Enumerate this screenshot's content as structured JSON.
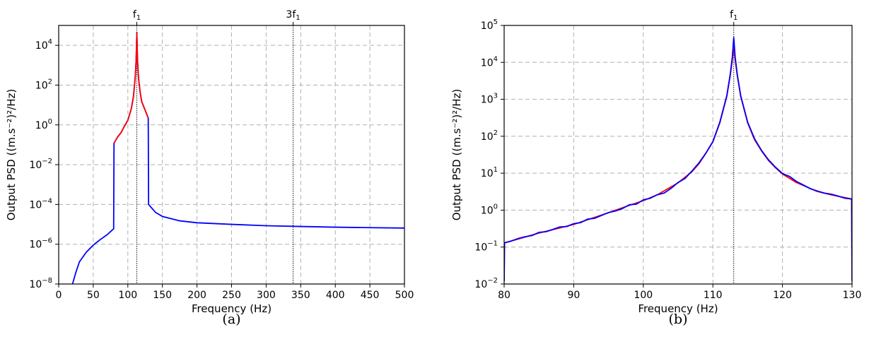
{
  "chart_data": [
    {
      "type": "line",
      "caption": "(a)",
      "xlabel": "Frequency (Hz)",
      "ylabel": "Output PSD ((m.s⁻²)²/Hz)",
      "xlim": [
        0,
        500
      ],
      "ylim": [
        1e-08,
        100000.0
      ],
      "yscale": "log",
      "grid": true,
      "xticks": [
        0,
        50,
        100,
        150,
        200,
        250,
        300,
        350,
        400,
        450,
        500
      ],
      "yticks": [
        {
          "exp": -8,
          "label": "10",
          "sup": "−8"
        },
        {
          "exp": -6,
          "label": "10",
          "sup": "−6"
        },
        {
          "exp": -4,
          "label": "10",
          "sup": "−4"
        },
        {
          "exp": -2,
          "label": "10",
          "sup": "−2"
        },
        {
          "exp": 0,
          "label": "10",
          "sup": "0"
        },
        {
          "exp": 2,
          "label": "10",
          "sup": "2"
        },
        {
          "exp": 4,
          "label": "10",
          "sup": "4"
        }
      ],
      "markers": [
        {
          "x": 113,
          "label": "f",
          "sub": "1"
        },
        {
          "x": 339,
          "label": "3f",
          "sub": "1"
        }
      ],
      "series": [
        {
          "color": "#0000ff",
          "x": [
            20,
            25,
            30,
            40,
            50,
            60,
            70,
            79.5,
            80,
            85,
            90,
            95,
            100,
            105,
            108,
            110,
            111,
            112,
            112.5,
            113,
            113.5,
            114,
            115,
            116,
            118,
            120,
            125,
            129.5,
            130,
            140,
            150,
            175,
            200,
            250,
            300,
            350,
            400,
            450,
            500
          ],
          "y": [
            1e-08,
            4e-08,
            1.3e-07,
            4e-07,
            9e-07,
            1.7e-06,
            3e-06,
            6e-06,
            0.12,
            0.24,
            0.4,
            0.85,
            1.7,
            6.5,
            25,
            130,
            380,
            1800,
            9000,
            45000,
            9000,
            1800,
            400,
            150,
            40,
            15,
            5.5,
            2.2,
            0.0001,
            4e-05,
            2.5e-05,
            1.5e-05,
            1.2e-05,
            1e-05,
            8.5e-06,
            7.8e-06,
            7.2e-06,
            6.8e-06,
            6.5e-06
          ]
        },
        {
          "color": "#ff0000",
          "x": [
            80,
            85,
            90,
            95,
            100,
            105,
            108,
            110,
            111,
            112,
            112.5,
            113,
            113.5,
            114,
            115,
            116,
            118,
            120,
            125,
            129.5
          ],
          "y": [
            0.12,
            0.24,
            0.4,
            0.85,
            1.7,
            6.5,
            25,
            130,
            380,
            1800,
            9000,
            40000,
            9000,
            1800,
            400,
            150,
            40,
            15,
            5.5,
            2.2
          ]
        }
      ]
    },
    {
      "type": "line",
      "caption": "(b)",
      "xlabel": "Frequency (Hz)",
      "ylabel": "Output PSD ((m.s⁻²)²/Hz)",
      "xlim": [
        80,
        130
      ],
      "ylim": [
        0.01,
        100000.0
      ],
      "yscale": "log",
      "grid": true,
      "xticks": [
        80,
        90,
        100,
        110,
        120,
        130
      ],
      "yticks": [
        {
          "exp": -2,
          "label": "10",
          "sup": "−2"
        },
        {
          "exp": -1,
          "label": "10",
          "sup": "−1"
        },
        {
          "exp": 0,
          "label": "10",
          "sup": "0"
        },
        {
          "exp": 1,
          "label": "10",
          "sup": "1"
        },
        {
          "exp": 2,
          "label": "10",
          "sup": "2"
        },
        {
          "exp": 3,
          "label": "10",
          "sup": "3"
        },
        {
          "exp": 4,
          "label": "10",
          "sup": "4"
        },
        {
          "exp": 5,
          "label": "10",
          "sup": "5"
        }
      ],
      "markers": [
        {
          "x": 113,
          "label": "f",
          "sub": "1"
        }
      ],
      "series": [
        {
          "color": "#ff0000",
          "x": [
            80,
            80.05,
            82,
            85,
            88,
            90,
            92,
            95,
            98,
            100,
            102,
            105,
            107,
            108,
            109,
            110,
            111,
            112,
            112.5,
            112.8,
            113,
            113.2,
            113.5,
            114,
            115,
            116,
            117,
            118,
            119,
            120,
            122,
            125,
            127,
            129.95,
            130
          ],
          "y": [
            0.012,
            0.13,
            0.165,
            0.24,
            0.33,
            0.41,
            0.55,
            0.85,
            1.35,
            1.8,
            2.6,
            5.5,
            11,
            18,
            35,
            70,
            230,
            1200,
            4500,
            12000,
            25000,
            12000,
            4500,
            1200,
            230,
            80,
            40,
            22,
            14,
            9.5,
            5.6,
            3.2,
            2.6,
            2.0,
            0.012
          ]
        },
        {
          "color": "#0000ff",
          "x": [
            80,
            80.05,
            81,
            82,
            83,
            84,
            85,
            86,
            87,
            88,
            89,
            90,
            91,
            92,
            93,
            94,
            95,
            96,
            97,
            98,
            99,
            100,
            101,
            102,
            103,
            104,
            105,
            106,
            107,
            108,
            109,
            110,
            111,
            112,
            112.5,
            112.8,
            113,
            113.2,
            113.5,
            114,
            115,
            116,
            117,
            118,
            119,
            120,
            121,
            122,
            123,
            124,
            125,
            126,
            127,
            128,
            129,
            129.95,
            130
          ],
          "y": [
            0.012,
            0.13,
            0.145,
            0.17,
            0.19,
            0.205,
            0.25,
            0.26,
            0.3,
            0.35,
            0.36,
            0.43,
            0.46,
            0.57,
            0.6,
            0.72,
            0.86,
            0.95,
            1.1,
            1.4,
            1.45,
            1.9,
            2.1,
            2.6,
            2.9,
            3.9,
            5.6,
            7.2,
            11.5,
            19,
            35,
            72,
            240,
            1250,
            4800,
            14000,
            47000,
            14000,
            4800,
            1250,
            240,
            85,
            41,
            23,
            14.5,
            9.8,
            8.2,
            6.0,
            4.8,
            3.8,
            3.3,
            2.9,
            2.7,
            2.4,
            2.1,
            2.0,
            0.012
          ]
        }
      ]
    }
  ]
}
